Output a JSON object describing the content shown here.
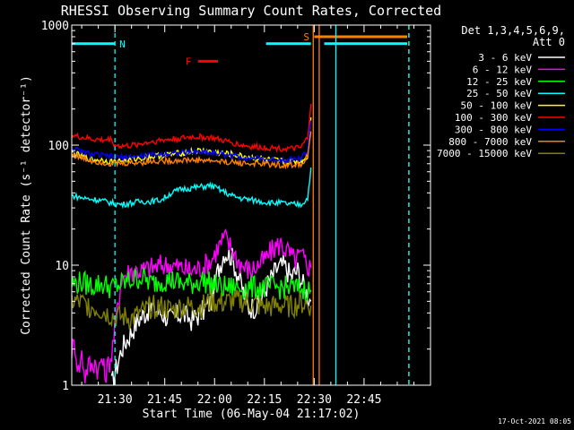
{
  "chart_data": {
    "type": "line",
    "title": "RHESSI Observing Summary Count Rates, Corrected",
    "xlabel": "Start Time (06-May-04 21:17:02)",
    "ylabel": "Corrected Count Rate (s⁻¹ detector⁻¹)",
    "y_scale": "log",
    "ylim": [
      1,
      1000
    ],
    "y_ticks": [
      {
        "value": 1,
        "label": "1"
      },
      {
        "value": 10,
        "label": "10"
      },
      {
        "value": 100,
        "label": "100"
      },
      {
        "value": 1000,
        "label": "1000"
      }
    ],
    "xlim_min": [
      0,
      108
    ],
    "x_ticks": [
      {
        "min": 13,
        "label": "21:30"
      },
      {
        "min": 28,
        "label": "21:45"
      },
      {
        "min": 43,
        "label": "22:00"
      },
      {
        "min": 58,
        "label": "22:15"
      },
      {
        "min": 73,
        "label": "22:30"
      },
      {
        "min": 88,
        "label": "22:45"
      }
    ],
    "legend_header": [
      "Det 1,3,4,5,6,9,",
      "Att 0"
    ],
    "legend_position": "right",
    "series": [
      {
        "name": "3 - 6 keV",
        "color": "#ffffff",
        "points": [
          [
            12,
            1
          ],
          [
            15,
            2
          ],
          [
            17,
            2.5
          ],
          [
            20,
            3.5
          ],
          [
            24,
            4.5
          ],
          [
            27,
            4
          ],
          [
            30,
            3.5
          ],
          [
            33,
            4
          ],
          [
            36,
            3.5
          ],
          [
            39,
            4
          ],
          [
            42,
            5
          ],
          [
            44,
            9
          ],
          [
            46,
            13
          ],
          [
            48,
            12
          ],
          [
            51,
            7
          ],
          [
            53,
            4.5
          ],
          [
            56,
            4.5
          ],
          [
            59,
            7
          ],
          [
            62,
            9.5
          ],
          [
            64,
            10
          ],
          [
            66,
            8
          ],
          [
            68,
            9
          ],
          [
            70,
            6.5
          ],
          [
            72,
            5
          ]
        ]
      },
      {
        "name": "6 - 12 keV",
        "color": "#ff00ff",
        "points": [
          [
            0,
            2
          ],
          [
            1,
            2.2
          ],
          [
            2,
            1.3
          ],
          [
            3,
            1.8
          ],
          [
            4,
            1.2
          ],
          [
            5,
            1.5
          ],
          [
            6,
            1.4
          ],
          [
            7,
            1.6
          ],
          [
            8,
            1.3
          ],
          [
            9,
            1.7
          ],
          [
            10,
            1.2
          ],
          [
            11,
            1.5
          ],
          [
            12,
            1.8
          ],
          [
            15,
            8
          ],
          [
            18,
            9
          ],
          [
            21,
            9
          ],
          [
            24,
            9.5
          ],
          [
            27,
            10
          ],
          [
            30,
            10
          ],
          [
            33,
            9.5
          ],
          [
            36,
            9
          ],
          [
            39,
            9.5
          ],
          [
            42,
            11
          ],
          [
            44,
            14
          ],
          [
            46,
            17
          ],
          [
            48,
            14
          ],
          [
            50,
            11
          ],
          [
            52,
            9.5
          ],
          [
            54,
            9
          ],
          [
            56,
            10
          ],
          [
            58,
            11
          ],
          [
            61,
            14
          ],
          [
            63,
            15
          ],
          [
            65,
            13
          ],
          [
            67,
            11
          ],
          [
            69,
            12
          ],
          [
            71,
            10
          ],
          [
            72,
            9.5
          ]
        ]
      },
      {
        "name": "12 - 25 keV",
        "color": "#00ff00",
        "points": [
          [
            0,
            7
          ],
          [
            3,
            7.2
          ],
          [
            6,
            6.8
          ],
          [
            9,
            7
          ],
          [
            12,
            6.5
          ],
          [
            15,
            7
          ],
          [
            18,
            7.5
          ],
          [
            21,
            8
          ],
          [
            24,
            7
          ],
          [
            27,
            7.5
          ],
          [
            30,
            7.5
          ],
          [
            33,
            7
          ],
          [
            36,
            7
          ],
          [
            39,
            7.5
          ],
          [
            42,
            7
          ],
          [
            45,
            6.5
          ],
          [
            48,
            6.5
          ],
          [
            51,
            6.5
          ],
          [
            54,
            6.5
          ],
          [
            57,
            6.5
          ],
          [
            60,
            6.5
          ],
          [
            63,
            6.5
          ],
          [
            66,
            6.5
          ],
          [
            69,
            6.3
          ],
          [
            72,
            6.2
          ]
        ]
      },
      {
        "name": "25 - 50 keV",
        "color": "#00ffff",
        "points": [
          [
            0,
            38
          ],
          [
            4,
            36
          ],
          [
            8,
            35
          ],
          [
            12,
            33
          ],
          [
            15,
            32
          ],
          [
            18,
            33
          ],
          [
            21,
            34
          ],
          [
            24,
            34
          ],
          [
            27,
            35
          ],
          [
            30,
            40
          ],
          [
            33,
            43
          ],
          [
            36,
            44
          ],
          [
            39,
            45
          ],
          [
            42,
            46
          ],
          [
            45,
            42
          ],
          [
            48,
            38
          ],
          [
            51,
            36
          ],
          [
            54,
            35
          ],
          [
            57,
            34
          ],
          [
            60,
            33
          ],
          [
            63,
            33
          ],
          [
            66,
            32
          ],
          [
            69,
            32
          ],
          [
            71,
            36
          ],
          [
            72,
            65
          ]
        ]
      },
      {
        "name": "50 - 100 keV",
        "color": "#ffff00",
        "points": [
          [
            0,
            88
          ],
          [
            3,
            80
          ],
          [
            6,
            76
          ],
          [
            9,
            75
          ],
          [
            12,
            73
          ],
          [
            15,
            74
          ],
          [
            18,
            76
          ],
          [
            21,
            78
          ],
          [
            24,
            80
          ],
          [
            27,
            82
          ],
          [
            30,
            84
          ],
          [
            33,
            86
          ],
          [
            36,
            88
          ],
          [
            39,
            90
          ],
          [
            42,
            88
          ],
          [
            45,
            86
          ],
          [
            48,
            84
          ],
          [
            51,
            81
          ],
          [
            54,
            79
          ],
          [
            57,
            77
          ],
          [
            60,
            75
          ],
          [
            63,
            74
          ],
          [
            66,
            73
          ],
          [
            69,
            73
          ],
          [
            71,
            80
          ],
          [
            72,
            170
          ]
        ]
      },
      {
        "name": "100 - 300 keV",
        "color": "#ff0000",
        "points": [
          [
            0,
            120
          ],
          [
            3,
            116
          ],
          [
            6,
            112
          ],
          [
            9,
            110
          ],
          [
            12,
            112
          ],
          [
            13,
            100
          ],
          [
            15,
            98
          ],
          [
            18,
            99
          ],
          [
            21,
            103
          ],
          [
            24,
            107
          ],
          [
            27,
            110
          ],
          [
            30,
            112
          ],
          [
            33,
            114
          ],
          [
            36,
            117
          ],
          [
            39,
            117
          ],
          [
            42,
            115
          ],
          [
            45,
            110
          ],
          [
            48,
            105
          ],
          [
            51,
            100
          ],
          [
            54,
            97
          ],
          [
            57,
            96
          ],
          [
            60,
            95
          ],
          [
            63,
            94
          ],
          [
            66,
            93
          ],
          [
            69,
            95
          ],
          [
            71,
            115
          ],
          [
            72,
            220
          ]
        ]
      },
      {
        "name": "300 - 800 keV",
        "color": "#0000ff",
        "points": [
          [
            0,
            94
          ],
          [
            3,
            88
          ],
          [
            6,
            84
          ],
          [
            9,
            82
          ],
          [
            12,
            80
          ],
          [
            15,
            79
          ],
          [
            18,
            80
          ],
          [
            21,
            81
          ],
          [
            24,
            83
          ],
          [
            27,
            84
          ],
          [
            30,
            86
          ],
          [
            33,
            86
          ],
          [
            36,
            87
          ],
          [
            39,
            88
          ],
          [
            42,
            87
          ],
          [
            45,
            85
          ],
          [
            48,
            82
          ],
          [
            51,
            80
          ],
          [
            54,
            78
          ],
          [
            57,
            77
          ],
          [
            60,
            76
          ],
          [
            63,
            76
          ],
          [
            66,
            76
          ],
          [
            69,
            78
          ],
          [
            71,
            90
          ],
          [
            72,
            160
          ]
        ]
      },
      {
        "name": "800 - 7000 keV",
        "color": "#ff8000",
        "points": [
          [
            0,
            84
          ],
          [
            3,
            78
          ],
          [
            6,
            74
          ],
          [
            9,
            72
          ],
          [
            12,
            70
          ],
          [
            15,
            70
          ],
          [
            18,
            71
          ],
          [
            21,
            72
          ],
          [
            24,
            73
          ],
          [
            27,
            74
          ],
          [
            30,
            74
          ],
          [
            33,
            75
          ],
          [
            36,
            75
          ],
          [
            39,
            75
          ],
          [
            42,
            74
          ],
          [
            45,
            73
          ],
          [
            48,
            72
          ],
          [
            51,
            71
          ],
          [
            54,
            70
          ],
          [
            57,
            70
          ],
          [
            60,
            69
          ],
          [
            63,
            68
          ],
          [
            66,
            68
          ],
          [
            69,
            70
          ],
          [
            71,
            80
          ],
          [
            72,
            130
          ]
        ]
      },
      {
        "name": "7000 - 15000 keV",
        "color": "#808000",
        "points": [
          [
            0,
            5
          ],
          [
            3,
            4.8
          ],
          [
            6,
            4.5
          ],
          [
            9,
            4.2
          ],
          [
            12,
            3.8
          ],
          [
            15,
            3.7
          ],
          [
            18,
            3.6
          ],
          [
            21,
            4
          ],
          [
            24,
            4.5
          ],
          [
            27,
            4.5
          ],
          [
            30,
            4.2
          ],
          [
            33,
            4.5
          ],
          [
            36,
            4.5
          ],
          [
            39,
            4.5
          ],
          [
            42,
            5
          ],
          [
            45,
            4.8
          ],
          [
            48,
            5
          ],
          [
            51,
            5
          ],
          [
            54,
            4.8
          ],
          [
            57,
            4.5
          ],
          [
            60,
            4.5
          ],
          [
            63,
            4.6
          ],
          [
            66,
            4.5
          ],
          [
            69,
            4.8
          ],
          [
            72,
            4.6
          ]
        ]
      }
    ],
    "flags": [
      {
        "label": "N",
        "color": "#00ffff",
        "y": 700,
        "ranges": [
          [
            0,
            13
          ],
          [
            58.5,
            72
          ],
          [
            76,
            101
          ]
        ]
      },
      {
        "label": "S",
        "color": "#ff8000",
        "y": 800,
        "ranges": [
          [
            73,
            101
          ]
        ]
      },
      {
        "label": "F",
        "color": "#ff0000",
        "y": 500,
        "ranges": [
          [
            38,
            44
          ]
        ]
      }
    ],
    "vlines": [
      {
        "x": 13,
        "color": "#00ffff",
        "style": "dashed"
      },
      {
        "x": 72.7,
        "color": "#ff8000",
        "style": "solid"
      },
      {
        "x": 74.5,
        "color": "#ff8000",
        "style": "solid"
      },
      {
        "x": 79.5,
        "color": "#00ffff",
        "style": "solid"
      },
      {
        "x": 101.5,
        "color": "#ff8000",
        "style": "dashed"
      },
      {
        "x": 101.5,
        "color": "#00ffff",
        "style": "dashed"
      }
    ],
    "grid": false
  },
  "footer": {
    "timestamp": "17-Oct-2021 08:05"
  }
}
